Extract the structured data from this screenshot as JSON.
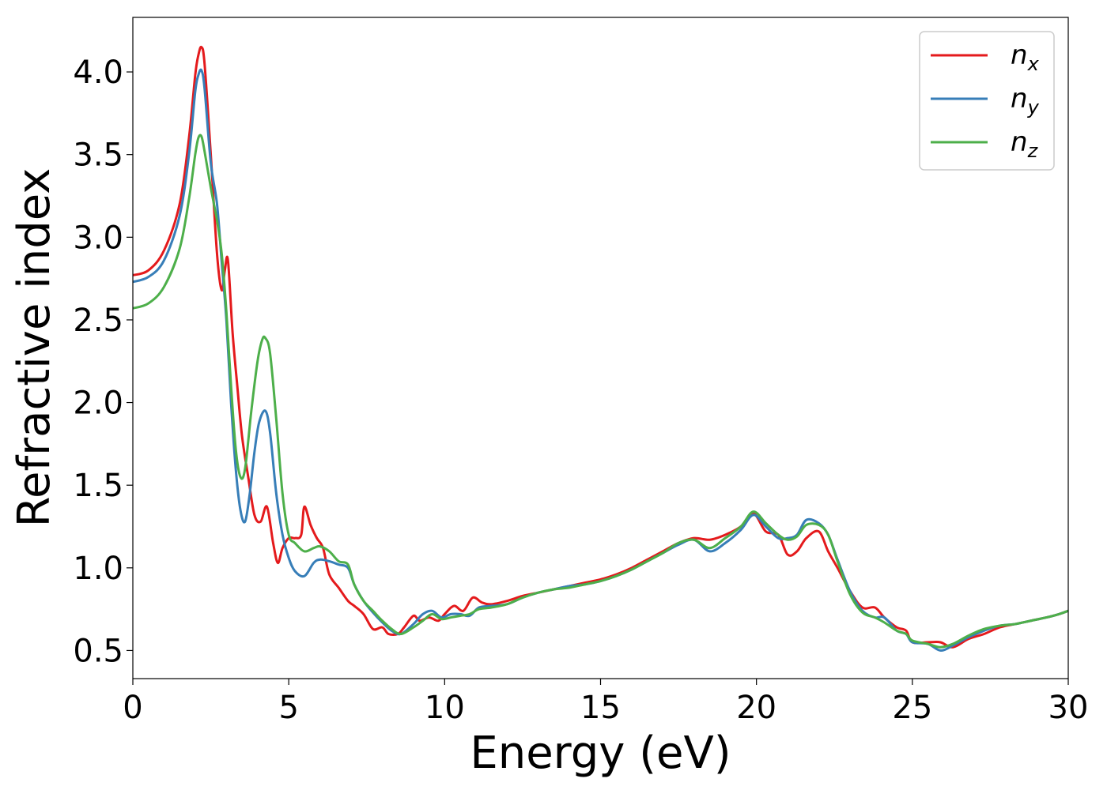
{
  "chart_data": {
    "type": "line",
    "xlabel": "Energy (eV)",
    "ylabel": "Refractive index",
    "xlim": [
      0,
      30
    ],
    "ylim": [
      0.33,
      4.33
    ],
    "xticks": [
      0,
      5,
      10,
      15,
      20,
      25,
      30
    ],
    "yticks": [
      0.5,
      1.0,
      1.5,
      2.0,
      2.5,
      3.0,
      3.5,
      4.0
    ],
    "grid": false,
    "legend_position": "top-right",
    "series": [
      {
        "name": "n",
        "subscript": "x",
        "color": "#e41a1c",
        "x": [
          0,
          0.5,
          1.0,
          1.5,
          1.8,
          2.0,
          2.1,
          2.2,
          2.3,
          2.5,
          2.7,
          2.85,
          2.95,
          3.05,
          3.2,
          3.35,
          3.5,
          3.7,
          3.9,
          4.1,
          4.3,
          4.5,
          4.65,
          4.8,
          5.0,
          5.2,
          5.4,
          5.5,
          5.7,
          5.9,
          6.1,
          6.3,
          6.6,
          6.9,
          7.1,
          7.4,
          7.7,
          8.0,
          8.2,
          8.5,
          8.7,
          9.0,
          9.2,
          9.5,
          9.8,
          10.0,
          10.3,
          10.6,
          10.9,
          11.2,
          11.5,
          12.0,
          12.5,
          13.0,
          13.5,
          14.0,
          14.5,
          15.0,
          15.5,
          16.0,
          16.5,
          17.0,
          17.5,
          18.0,
          18.5,
          19.0,
          19.5,
          19.9,
          20.3,
          20.7,
          21.0,
          21.3,
          21.6,
          22.0,
          22.3,
          22.6,
          23.0,
          23.4,
          23.8,
          24.1,
          24.5,
          24.8,
          25.0,
          25.5,
          25.9,
          26.3,
          26.8,
          27.3,
          27.8,
          28.3,
          28.8,
          29.3,
          29.7,
          30.0
        ],
        "values": [
          2.77,
          2.8,
          2.92,
          3.2,
          3.6,
          3.98,
          4.1,
          4.15,
          4.05,
          3.5,
          2.9,
          2.68,
          2.8,
          2.86,
          2.42,
          2.1,
          1.8,
          1.55,
          1.32,
          1.28,
          1.37,
          1.15,
          1.03,
          1.12,
          1.18,
          1.18,
          1.2,
          1.37,
          1.26,
          1.18,
          1.12,
          0.96,
          0.88,
          0.8,
          0.77,
          0.72,
          0.63,
          0.64,
          0.6,
          0.6,
          0.64,
          0.71,
          0.68,
          0.7,
          0.68,
          0.72,
          0.77,
          0.74,
          0.82,
          0.79,
          0.78,
          0.8,
          0.83,
          0.85,
          0.87,
          0.89,
          0.91,
          0.93,
          0.96,
          1.0,
          1.05,
          1.1,
          1.15,
          1.18,
          1.17,
          1.2,
          1.25,
          1.33,
          1.22,
          1.2,
          1.08,
          1.1,
          1.18,
          1.22,
          1.1,
          1.0,
          0.86,
          0.76,
          0.76,
          0.7,
          0.64,
          0.62,
          0.55,
          0.55,
          0.55,
          0.52,
          0.57,
          0.6,
          0.64,
          0.66,
          0.68,
          0.7,
          0.72,
          0.74
        ]
      },
      {
        "name": "n",
        "subscript": "y",
        "color": "#377eb8",
        "x": [
          0,
          0.5,
          1.0,
          1.5,
          1.8,
          2.0,
          2.1,
          2.2,
          2.3,
          2.5,
          2.7,
          2.85,
          3.0,
          3.15,
          3.3,
          3.45,
          3.6,
          3.75,
          3.9,
          4.05,
          4.25,
          4.4,
          4.6,
          4.8,
          5.0,
          5.2,
          5.5,
          5.8,
          6.0,
          6.3,
          6.6,
          6.9,
          7.1,
          7.4,
          7.7,
          8.0,
          8.3,
          8.6,
          9.0,
          9.3,
          9.6,
          9.9,
          10.2,
          10.5,
          10.8,
          11.1,
          11.5,
          12.0,
          12.5,
          13.0,
          13.5,
          14.0,
          14.5,
          15.0,
          15.5,
          16.0,
          16.5,
          17.0,
          17.5,
          18.0,
          18.5,
          19.0,
          19.5,
          19.9,
          20.3,
          20.7,
          21.0,
          21.3,
          21.6,
          22.0,
          22.3,
          22.6,
          23.0,
          23.4,
          23.8,
          24.1,
          24.5,
          24.8,
          25.0,
          25.5,
          25.9,
          26.3,
          26.8,
          27.3,
          27.8,
          28.3,
          28.8,
          29.3,
          29.7,
          30.0
        ],
        "values": [
          2.73,
          2.76,
          2.86,
          3.13,
          3.5,
          3.88,
          3.98,
          4.01,
          3.9,
          3.45,
          3.2,
          2.85,
          2.5,
          2.0,
          1.6,
          1.35,
          1.28,
          1.45,
          1.7,
          1.88,
          1.95,
          1.82,
          1.45,
          1.2,
          1.06,
          0.98,
          0.95,
          1.03,
          1.05,
          1.04,
          1.02,
          1.0,
          0.9,
          0.8,
          0.73,
          0.67,
          0.62,
          0.6,
          0.66,
          0.72,
          0.74,
          0.7,
          0.72,
          0.72,
          0.71,
          0.76,
          0.77,
          0.78,
          0.82,
          0.85,
          0.87,
          0.89,
          0.9,
          0.92,
          0.95,
          0.99,
          1.04,
          1.09,
          1.14,
          1.17,
          1.1,
          1.15,
          1.23,
          1.32,
          1.25,
          1.18,
          1.18,
          1.2,
          1.29,
          1.27,
          1.2,
          1.05,
          0.86,
          0.74,
          0.7,
          0.7,
          0.62,
          0.6,
          0.55,
          0.54,
          0.5,
          0.53,
          0.58,
          0.62,
          0.65,
          0.66,
          0.68,
          0.7,
          0.72,
          0.74
        ]
      },
      {
        "name": "n",
        "subscript": "z",
        "color": "#4daf4a",
        "x": [
          0,
          0.5,
          1.0,
          1.5,
          1.8,
          2.0,
          2.1,
          2.2,
          2.3,
          2.5,
          2.7,
          2.85,
          3.0,
          3.15,
          3.3,
          3.45,
          3.6,
          3.8,
          4.0,
          4.15,
          4.25,
          4.4,
          4.6,
          4.8,
          5.0,
          5.2,
          5.5,
          5.8,
          6.0,
          6.3,
          6.6,
          6.9,
          7.1,
          7.4,
          7.7,
          8.0,
          8.3,
          8.6,
          9.0,
          9.3,
          9.6,
          9.9,
          10.2,
          10.5,
          10.8,
          11.1,
          11.5,
          12.0,
          12.5,
          13.0,
          13.5,
          14.0,
          14.5,
          15.0,
          15.5,
          16.0,
          16.5,
          17.0,
          17.5,
          18.0,
          18.5,
          19.0,
          19.5,
          19.9,
          20.3,
          20.7,
          21.0,
          21.3,
          21.6,
          22.0,
          22.3,
          22.6,
          23.0,
          23.4,
          23.8,
          24.1,
          24.5,
          24.8,
          25.0,
          25.5,
          25.9,
          26.3,
          26.8,
          27.3,
          27.8,
          28.3,
          28.8,
          29.3,
          29.7,
          30.0
        ],
        "values": [
          2.57,
          2.6,
          2.7,
          2.93,
          3.23,
          3.5,
          3.6,
          3.61,
          3.52,
          3.3,
          3.1,
          2.9,
          2.55,
          2.1,
          1.72,
          1.55,
          1.6,
          1.95,
          2.25,
          2.38,
          2.39,
          2.3,
          1.9,
          1.45,
          1.2,
          1.15,
          1.1,
          1.12,
          1.13,
          1.1,
          1.04,
          1.02,
          0.9,
          0.8,
          0.74,
          0.68,
          0.63,
          0.6,
          0.64,
          0.68,
          0.72,
          0.69,
          0.7,
          0.71,
          0.72,
          0.75,
          0.76,
          0.78,
          0.82,
          0.85,
          0.87,
          0.88,
          0.9,
          0.92,
          0.95,
          0.99,
          1.04,
          1.09,
          1.15,
          1.17,
          1.12,
          1.18,
          1.25,
          1.34,
          1.27,
          1.2,
          1.17,
          1.19,
          1.26,
          1.26,
          1.2,
          1.04,
          0.84,
          0.73,
          0.7,
          0.67,
          0.62,
          0.6,
          0.56,
          0.54,
          0.52,
          0.54,
          0.59,
          0.63,
          0.65,
          0.66,
          0.68,
          0.7,
          0.72,
          0.74
        ]
      }
    ]
  }
}
